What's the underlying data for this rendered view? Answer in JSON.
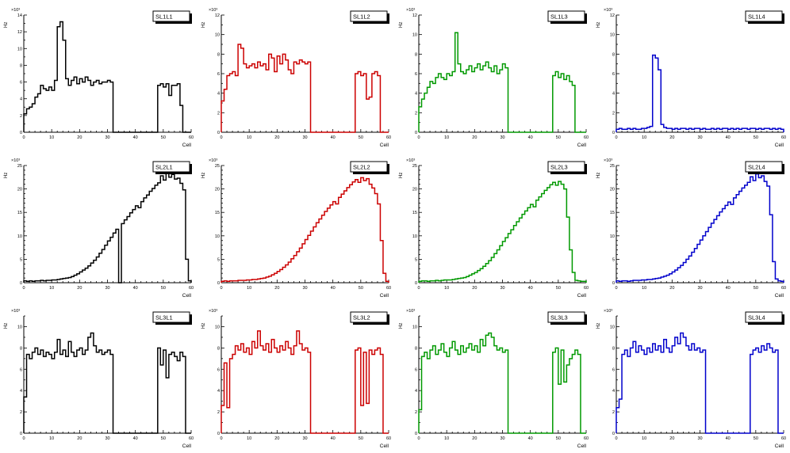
{
  "page": {
    "background": "#ffffff"
  },
  "chart_data": [
    {
      "type": "line",
      "style": "root-step-histogram",
      "title": "SL1L1",
      "color": "#000000",
      "ylabel": "Hz",
      "xlabel": "Cell",
      "y_exponent": "×10³",
      "xlim": [
        0,
        60
      ],
      "ylim": [
        0,
        14
      ],
      "ytick_step": 2,
      "xtick_step": 10,
      "bin_width": 1,
      "values": [
        2.2,
        2.8,
        3.0,
        3.4,
        4.2,
        4.6,
        5.6,
        5.2,
        5.0,
        5.4,
        5.0,
        6.2,
        12.6,
        13.2,
        11.0,
        6.4,
        5.6,
        6.2,
        6.6,
        5.8,
        6.4,
        6.0,
        6.6,
        6.2,
        5.6,
        6.0,
        6.2,
        5.8,
        6.0,
        6.0,
        6.2,
        6.0,
        0,
        0,
        0,
        0,
        0,
        0,
        0,
        0,
        0,
        0,
        0,
        0,
        0,
        0,
        0,
        0,
        5.6,
        5.8,
        5.4,
        5.8,
        4.4,
        5.6,
        5.6,
        5.8,
        3.2,
        0,
        0,
        0
      ]
    },
    {
      "type": "line",
      "style": "root-step-histogram",
      "title": "SL1L2",
      "color": "#cc0000",
      "ylabel": "Hz",
      "xlabel": "Cell",
      "y_exponent": "×10³",
      "xlim": [
        0,
        60
      ],
      "ylim": [
        0,
        12
      ],
      "ytick_step": 2,
      "xtick_step": 10,
      "bin_width": 1,
      "values": [
        3.2,
        4.4,
        5.8,
        6.0,
        6.2,
        5.8,
        9.0,
        8.6,
        7.0,
        6.6,
        6.8,
        7.0,
        6.6,
        7.2,
        6.8,
        7.0,
        6.4,
        8.0,
        7.6,
        6.2,
        7.8,
        7.0,
        8.0,
        7.4,
        6.4,
        6.0,
        7.2,
        7.0,
        7.4,
        7.2,
        7.0,
        7.2,
        0,
        0,
        0,
        0,
        0,
        0,
        0,
        0,
        0,
        0,
        0,
        0,
        0,
        0,
        0,
        0,
        6.0,
        6.2,
        5.8,
        6.0,
        3.4,
        3.6,
        6.0,
        6.2,
        5.8,
        0,
        0,
        0
      ]
    },
    {
      "type": "line",
      "style": "root-step-histogram",
      "title": "SL1L3",
      "color": "#009900",
      "ylabel": "Hz",
      "xlabel": "Cell",
      "y_exponent": "×10³",
      "xlim": [
        0,
        60
      ],
      "ylim": [
        0,
        12
      ],
      "ytick_step": 2,
      "xtick_step": 10,
      "bin_width": 1,
      "values": [
        2.6,
        3.4,
        4.0,
        4.6,
        5.2,
        5.0,
        5.6,
        6.0,
        5.6,
        5.4,
        6.0,
        5.8,
        6.2,
        10.2,
        7.0,
        6.2,
        6.0,
        6.4,
        6.8,
        6.2,
        6.6,
        7.0,
        6.4,
        6.8,
        7.2,
        6.6,
        6.2,
        6.8,
        6.0,
        6.4,
        7.0,
        6.6,
        0,
        0,
        0,
        0,
        0,
        0,
        0,
        0,
        0,
        0,
        0,
        0,
        0,
        0,
        0,
        0,
        5.8,
        6.2,
        5.6,
        6.0,
        5.4,
        5.8,
        5.2,
        4.8,
        0,
        0,
        0,
        0
      ]
    },
    {
      "type": "line",
      "style": "root-step-histogram",
      "title": "SL1L4",
      "color": "#0000cc",
      "ylabel": "Hz",
      "xlabel": "Cell",
      "y_exponent": "×10³",
      "xlim": [
        0,
        60
      ],
      "ylim": [
        0,
        12
      ],
      "ytick_step": 2,
      "xtick_step": 10,
      "bin_width": 1,
      "values": [
        0.3,
        0.4,
        0.3,
        0.3,
        0.4,
        0.3,
        0.4,
        0.3,
        0.3,
        0.4,
        0.4,
        0.5,
        0.6,
        7.9,
        7.6,
        6.4,
        0.8,
        0.5,
        0.4,
        0.4,
        0.3,
        0.4,
        0.3,
        0.4,
        0.4,
        0.3,
        0.4,
        0.3,
        0.4,
        0.4,
        0.3,
        0.4,
        0.3,
        0.3,
        0.4,
        0.3,
        0.4,
        0.3,
        0.4,
        0.4,
        0.3,
        0.4,
        0.3,
        0.4,
        0.3,
        0.4,
        0.4,
        0.3,
        0.4,
        0.4,
        0.3,
        0.4,
        0.3,
        0.4,
        0.4,
        0.3,
        0.4,
        0.3,
        0.4,
        0.3
      ]
    },
    {
      "type": "line",
      "style": "root-step-histogram",
      "title": "SL2L1",
      "color": "#000000",
      "ylabel": "Hz",
      "xlabel": "Cell",
      "y_exponent": "×10³",
      "xlim": [
        0,
        60
      ],
      "ylim": [
        0,
        25
      ],
      "ytick_step": 5,
      "xtick_step": 10,
      "bin_width": 1,
      "values": [
        0.4,
        0.3,
        0.4,
        0.3,
        0.4,
        0.4,
        0.5,
        0.4,
        0.5,
        0.5,
        0.6,
        0.6,
        0.7,
        0.8,
        0.9,
        1.0,
        1.1,
        1.3,
        1.6,
        1.9,
        2.3,
        2.7,
        3.1,
        3.6,
        4.2,
        4.8,
        5.5,
        6.3,
        7.1,
        8.0,
        8.9,
        9.7,
        10.6,
        11.4,
        0,
        12.6,
        13.4,
        14.1,
        14.9,
        15.6,
        16.4,
        16.0,
        17.3,
        18.1,
        18.7,
        19.5,
        20.1,
        20.8,
        21.3,
        22.8,
        21.9,
        23.5,
        22.5,
        23.1,
        22.1,
        22.3,
        21.2,
        19.8,
        5.0,
        0.4
      ]
    },
    {
      "type": "line",
      "style": "root-step-histogram",
      "title": "SL2L2",
      "color": "#cc0000",
      "ylabel": "Hz",
      "xlabel": "Cell",
      "y_exponent": "×10³",
      "xlim": [
        0,
        60
      ],
      "ylim": [
        0,
        25
      ],
      "ytick_step": 5,
      "xtick_step": 10,
      "bin_width": 1,
      "values": [
        0.3,
        0.4,
        0.3,
        0.4,
        0.4,
        0.4,
        0.5,
        0.5,
        0.5,
        0.6,
        0.6,
        0.7,
        0.7,
        0.8,
        0.9,
        1.0,
        1.2,
        1.4,
        1.7,
        2.0,
        2.4,
        2.8,
        3.3,
        3.8,
        4.4,
        5.1,
        5.8,
        6.6,
        7.4,
        8.3,
        9.2,
        10.1,
        11.0,
        11.9,
        12.8,
        13.6,
        14.4,
        15.2,
        15.9,
        16.6,
        17.3,
        16.8,
        18.2,
        18.9,
        19.6,
        20.3,
        20.9,
        21.5,
        22.0,
        21.4,
        22.4,
        21.8,
        22.2,
        21.0,
        20.2,
        19.0,
        16.8,
        9.0,
        2.0,
        0.3
      ]
    },
    {
      "type": "line",
      "style": "root-step-histogram",
      "title": "SL2L3",
      "color": "#009900",
      "ylabel": "Hz",
      "xlabel": "Cell",
      "y_exponent": "×10³",
      "xlim": [
        0,
        60
      ],
      "ylim": [
        0,
        25
      ],
      "ytick_step": 5,
      "xtick_step": 10,
      "bin_width": 1,
      "values": [
        0.3,
        0.4,
        0.4,
        0.3,
        0.4,
        0.4,
        0.5,
        0.4,
        0.5,
        0.6,
        0.6,
        0.6,
        0.7,
        0.8,
        0.9,
        1.0,
        1.1,
        1.3,
        1.6,
        1.9,
        2.2,
        2.6,
        3.0,
        3.5,
        4.1,
        4.7,
        5.4,
        6.2,
        7.0,
        7.9,
        8.8,
        9.6,
        10.5,
        11.3,
        12.2,
        13.0,
        13.8,
        14.6,
        15.3,
        16.0,
        16.7,
        16.2,
        17.6,
        18.3,
        19.0,
        19.7,
        20.3,
        20.9,
        21.4,
        20.8,
        21.6,
        21.0,
        20.0,
        14.0,
        7.0,
        2.2,
        0.5,
        0.4,
        0.3,
        0.3
      ]
    },
    {
      "type": "line",
      "style": "root-step-histogram",
      "title": "SL2L4",
      "color": "#0000cc",
      "ylabel": "Hz",
      "xlabel": "Cell",
      "y_exponent": "×10³",
      "xlim": [
        0,
        60
      ],
      "ylim": [
        0,
        25
      ],
      "ytick_step": 5,
      "xtick_step": 10,
      "bin_width": 1,
      "values": [
        0.4,
        0.3,
        0.4,
        0.4,
        0.3,
        0.4,
        0.5,
        0.5,
        0.5,
        0.6,
        0.6,
        0.7,
        0.7,
        0.8,
        0.9,
        1.0,
        1.2,
        1.4,
        1.6,
        1.9,
        2.3,
        2.7,
        3.2,
        3.7,
        4.3,
        5.0,
        5.7,
        6.5,
        7.3,
        8.2,
        9.1,
        10.0,
        10.9,
        11.8,
        12.7,
        13.5,
        14.3,
        15.1,
        15.8,
        16.5,
        17.2,
        16.7,
        18.1,
        18.8,
        19.5,
        20.2,
        20.8,
        21.4,
        22.6,
        21.8,
        23.2,
        22.4,
        22.8,
        21.6,
        20.6,
        14.5,
        4.5,
        0.8,
        0.4,
        0.3
      ]
    },
    {
      "type": "line",
      "style": "root-step-histogram",
      "title": "SL3L1",
      "color": "#000000",
      "ylabel": "Hz",
      "xlabel": "Cell",
      "y_exponent": "×10³",
      "xlim": [
        0,
        60
      ],
      "ylim": [
        0,
        11
      ],
      "ytick_step": 2,
      "xtick_step": 10,
      "bin_width": 1,
      "values": [
        3.4,
        7.4,
        7.0,
        7.6,
        8.0,
        7.4,
        7.8,
        7.2,
        7.6,
        7.4,
        7.0,
        7.6,
        8.8,
        7.4,
        7.8,
        7.2,
        8.6,
        7.6,
        7.2,
        7.8,
        8.0,
        7.4,
        7.8,
        9.0,
        9.4,
        8.2,
        7.6,
        7.8,
        7.4,
        7.6,
        7.8,
        7.4,
        0,
        0,
        0,
        0,
        0,
        0,
        0,
        0,
        0,
        0,
        0,
        0,
        0,
        0,
        0,
        0,
        8.0,
        6.4,
        7.8,
        5.2,
        7.4,
        7.6,
        7.2,
        6.8,
        7.6,
        7.2,
        0,
        0
      ]
    },
    {
      "type": "line",
      "style": "root-step-histogram",
      "title": "SL3L2",
      "color": "#cc0000",
      "ylabel": "Hz",
      "xlabel": "Cell",
      "y_exponent": "×10³",
      "xlim": [
        0,
        60
      ],
      "ylim": [
        0,
        11
      ],
      "ytick_step": 2,
      "xtick_step": 10,
      "bin_width": 1,
      "values": [
        2.6,
        6.6,
        2.4,
        7.0,
        7.4,
        8.2,
        7.8,
        8.4,
        7.6,
        8.0,
        7.4,
        8.6,
        8.0,
        9.6,
        8.2,
        7.8,
        8.4,
        7.6,
        8.8,
        8.0,
        7.6,
        8.2,
        7.8,
        8.6,
        8.0,
        7.4,
        8.2,
        9.6,
        8.4,
        7.8,
        8.0,
        7.6,
        0,
        0,
        0,
        0,
        0,
        0,
        0,
        0,
        0,
        0,
        0,
        0,
        0,
        0,
        0,
        0,
        7.8,
        8.0,
        2.6,
        7.6,
        2.8,
        7.8,
        7.4,
        7.8,
        8.0,
        7.4,
        0,
        0
      ]
    },
    {
      "type": "line",
      "style": "root-step-histogram",
      "title": "SL3L3",
      "color": "#009900",
      "ylabel": "Hz",
      "xlabel": "Cell",
      "y_exponent": "×10³",
      "xlim": [
        0,
        60
      ],
      "ylim": [
        0,
        11
      ],
      "ytick_step": 2,
      "xtick_step": 10,
      "bin_width": 1,
      "values": [
        2.2,
        7.2,
        7.6,
        7.0,
        7.8,
        8.2,
        7.4,
        7.8,
        8.4,
        7.6,
        7.2,
        8.0,
        8.6,
        7.8,
        7.4,
        8.2,
        7.6,
        8.0,
        8.4,
        7.8,
        8.2,
        7.6,
        8.8,
        8.2,
        9.2,
        9.4,
        9.0,
        8.2,
        7.8,
        8.0,
        7.6,
        7.8,
        0,
        0,
        0,
        0,
        0,
        0,
        0,
        0,
        0,
        0,
        0,
        0,
        0,
        0,
        0,
        0,
        7.6,
        8.0,
        4.6,
        7.8,
        4.8,
        6.4,
        7.0,
        7.4,
        7.8,
        7.4,
        0,
        0
      ]
    },
    {
      "type": "line",
      "style": "root-step-histogram",
      "title": "SL3L4",
      "color": "#0000cc",
      "ylabel": "Hz",
      "xlabel": "Cell",
      "y_exponent": "×10³",
      "xlim": [
        0,
        60
      ],
      "ylim": [
        0,
        11
      ],
      "ytick_step": 2,
      "xtick_step": 10,
      "bin_width": 1,
      "values": [
        2.4,
        3.2,
        7.4,
        7.8,
        7.2,
        8.0,
        8.6,
        7.6,
        8.2,
        7.8,
        7.4,
        8.0,
        7.6,
        8.4,
        7.8,
        8.2,
        7.6,
        8.8,
        8.0,
        7.6,
        8.2,
        9.0,
        8.4,
        9.4,
        9.0,
        8.2,
        7.8,
        8.4,
        7.8,
        8.0,
        7.6,
        7.8,
        0,
        0,
        0,
        0,
        0,
        0,
        0,
        0,
        0,
        0,
        0,
        0,
        0,
        0,
        0,
        0,
        7.4,
        7.8,
        8.0,
        7.6,
        8.2,
        7.8,
        8.4,
        8.0,
        7.6,
        7.8,
        0,
        0
      ]
    }
  ]
}
